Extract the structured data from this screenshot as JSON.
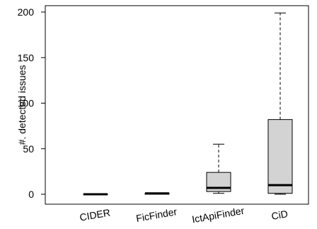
{
  "chart_data": {
    "type": "boxplot",
    "title": "",
    "xlabel": "",
    "ylabel": "#. detected issues",
    "ylim": [
      -10,
      210
    ],
    "yticks": [
      0,
      50,
      100,
      150,
      200
    ],
    "grid": false,
    "legend": "none",
    "categories": [
      "CIDER",
      "FicFinder",
      "IctApiFinder",
      "CiD"
    ],
    "boxes": [
      {
        "name": "CIDER",
        "min": 0,
        "q1": 0,
        "median": 0,
        "q3": 0,
        "max": 0
      },
      {
        "name": "FicFinder",
        "min": 0,
        "q1": 0,
        "median": 1,
        "q3": 1,
        "max": 1
      },
      {
        "name": "IctApiFinder",
        "min": 1,
        "q1": 3,
        "median": 7,
        "q3": 24,
        "max": 55
      },
      {
        "name": "CiD",
        "min": 0,
        "q1": 1,
        "median": 10,
        "q3": 82,
        "max": 199
      }
    ],
    "box_fill": "#d3d3d3",
    "line_color": "#000000"
  }
}
